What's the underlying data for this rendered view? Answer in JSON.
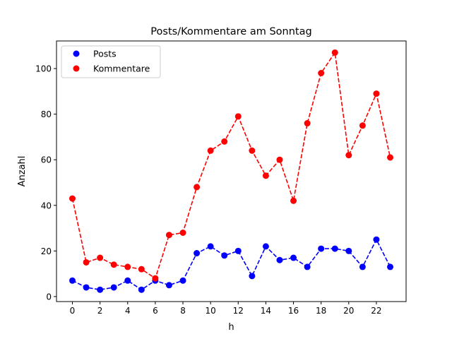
{
  "chart_data": {
    "type": "line",
    "title": "Posts/Kommentare am Sonntag",
    "xlabel": "h",
    "ylabel": "Anzahl",
    "xlim": [
      -1.15,
      24.15
    ],
    "ylim": [
      -2.2,
      112.1
    ],
    "xticks": [
      0,
      2,
      4,
      6,
      8,
      10,
      12,
      14,
      16,
      18,
      20,
      22
    ],
    "yticks": [
      0,
      20,
      40,
      60,
      80,
      100
    ],
    "grid": false,
    "legend_position": "top-left",
    "x": [
      0,
      1,
      2,
      3,
      4,
      5,
      6,
      7,
      8,
      9,
      10,
      11,
      12,
      13,
      14,
      15,
      16,
      17,
      18,
      19,
      20,
      21,
      22,
      23
    ],
    "series": [
      {
        "name": "Posts",
        "color": "#0000ff",
        "linestyle": "dashed",
        "marker": "circle",
        "values": [
          7,
          4,
          3,
          4,
          7,
          3,
          7,
          5,
          7,
          19,
          22,
          18,
          20,
          9,
          22,
          16,
          17,
          13,
          21,
          21,
          20,
          13,
          25,
          13
        ]
      },
      {
        "name": "Kommentare",
        "color": "#ff0000",
        "linestyle": "dashed",
        "marker": "circle",
        "values": [
          43,
          15,
          17,
          14,
          13,
          12,
          8,
          27,
          28,
          48,
          64,
          68,
          79,
          64,
          53,
          60,
          42,
          76,
          98,
          107,
          62,
          75,
          89,
          61
        ]
      }
    ]
  }
}
